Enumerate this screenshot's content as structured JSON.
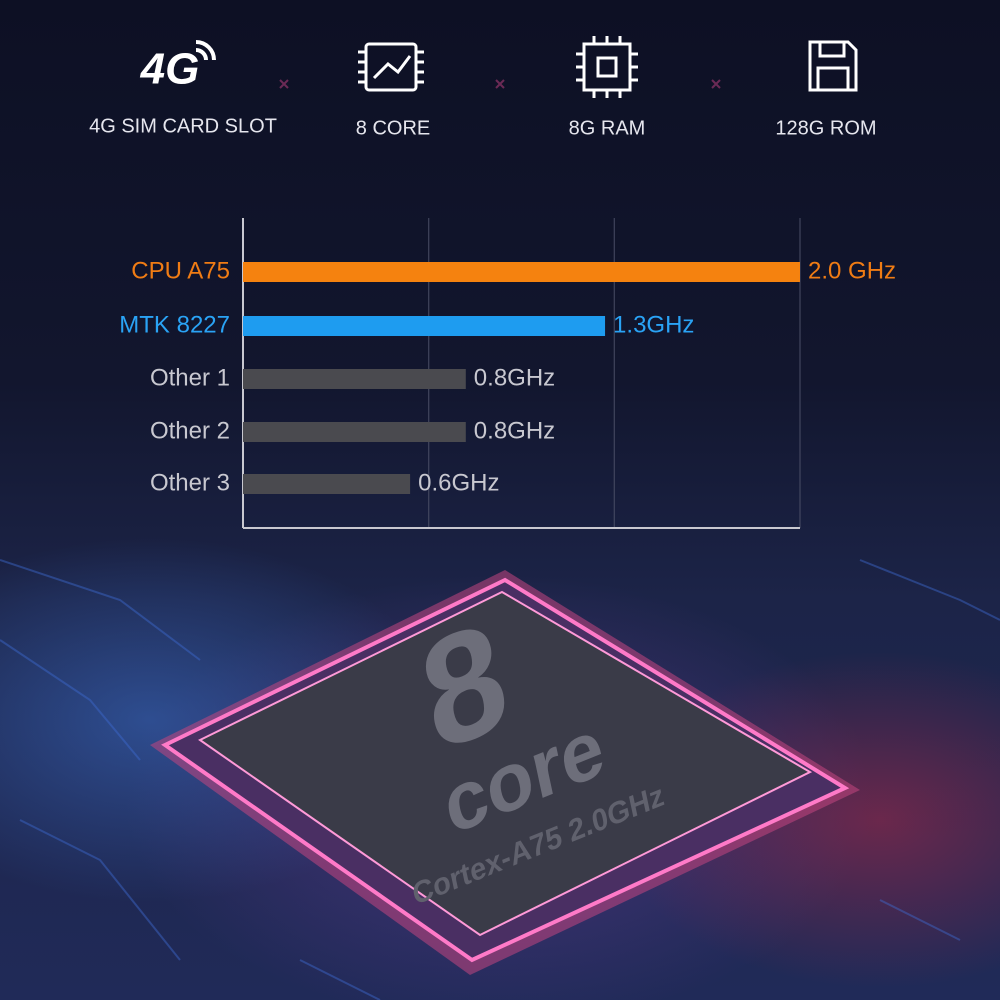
{
  "features": [
    {
      "icon_text": "4G",
      "label": "4G SIM CARD SLOT"
    },
    {
      "label": "8 CORE"
    },
    {
      "label": "8G RAM"
    },
    {
      "label": "128G ROM"
    }
  ],
  "chart_data": {
    "type": "hbar",
    "categories": [
      "CPU A75",
      "MTK 8227",
      "Other 1",
      "Other 2",
      "Other 3"
    ],
    "values": [
      2.0,
      1.3,
      0.8,
      0.8,
      0.6
    ],
    "value_labels": [
      "2.0 GHz",
      "1.3GHz",
      "0.8GHz",
      "0.8GHz",
      "0.6GHz"
    ],
    "colors": [
      "#f5820f",
      "#1e9cf0",
      "#4a4a4f",
      "#4a4a4f",
      "#4a4a4f"
    ],
    "label_colors": [
      "#f07c14",
      "#2aa3f5",
      "#c8c8d0",
      "#c8c8d0",
      "#c8c8d0"
    ],
    "xlim": [
      0,
      2.0
    ],
    "xgrid": [
      0.667,
      1.333,
      2.0
    ]
  },
  "chip": {
    "number": "8",
    "word": "core",
    "caption": "Cortex-A75 2.0GHz"
  }
}
